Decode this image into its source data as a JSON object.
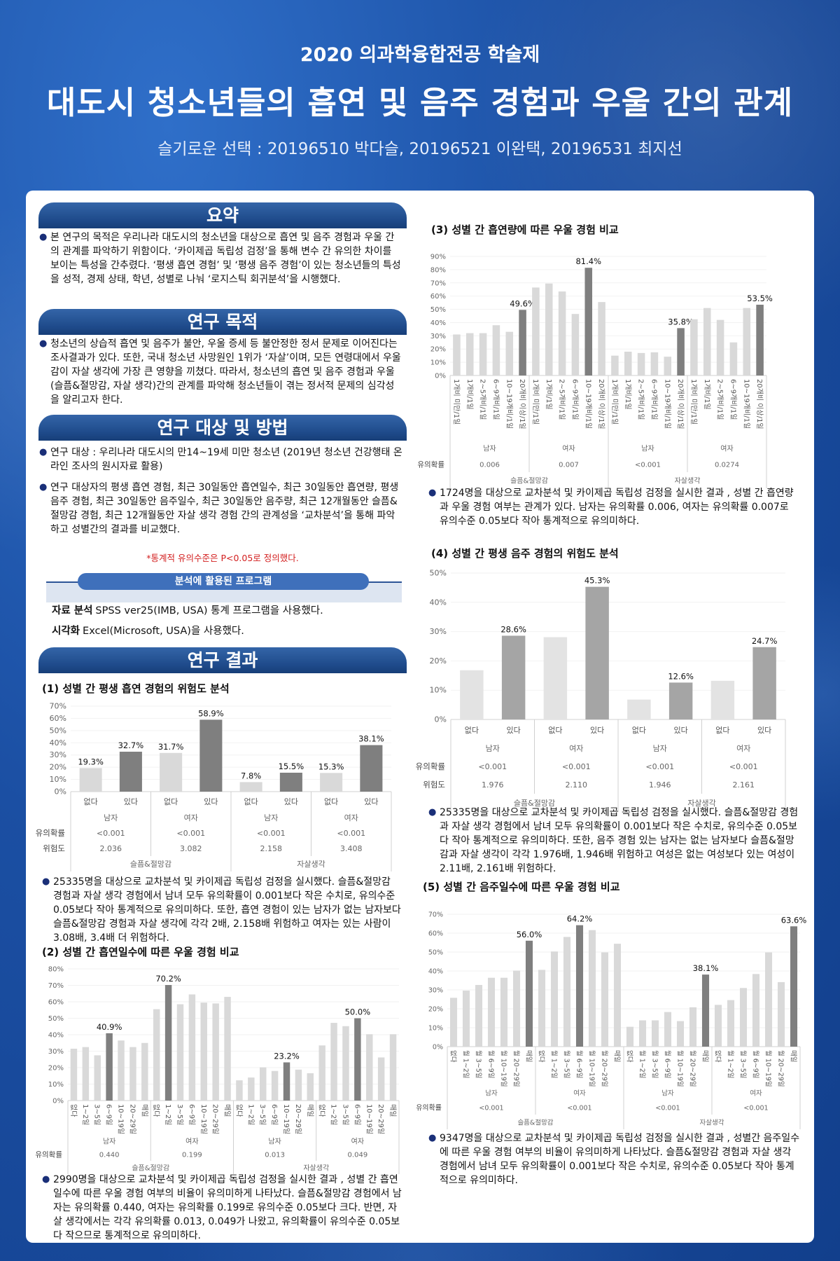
{
  "header": {
    "event": "2020 의과학융합전공 학술제",
    "title": "대도시 청소년들의 흡연 및 음주 경험과 우울 간의 관계",
    "authors": "슬기로운 선택 : 20196510 박다슬, 20196521 이완택, 20196531 최지선"
  },
  "sections": {
    "summary": {
      "title": "요약",
      "text": "본 연구의 목적은 우리나라 대도시의 청소년을 대상으로 흡연 및 음주 경험과 우울 간의 관계를 파악하기 위함이다. ‘카이제곱 독립성 검정’을 통해 변수 간 유의한 차이를 보이는 특성을 간추렸다. ‘평생 흡연 경험’ 및 ‘평생 음주 경험’이 있는 청소년들의 특성을 성적, 경제 상태, 학년, 성별로 나눠 ‘로지스틱 회귀분석’을 시행했다."
    },
    "purpose": {
      "title": "연구 목적",
      "text": "청소년의 상습적 흡연 및 음주가 불안, 우울 증세 등  불안정한 정서 문제로 이어진다는 조사결과가 있다. 또한, 국내 청소년 사망원인 1위가 ‘자살’이며, 모든 연령대에서 우울감이 자살 생각에 가장 큰 영향을 끼쳤다. 따라서, 청소년의 흡연 및 음주 경험과 우울(슬픔&절망감, 자살 생각)간의 관계를 파악해 청소년들이 겪는 정서적 문제의 심각성을 알리고자 한다."
    },
    "methods": {
      "title": "연구 대상 및 방법",
      "bullets": [
        "연구 대상 : 우리나라 대도시의 만14~19세 미만 청소년 (2019년 청소년 건강행태 온라인 조사의 원시자료 활용)",
        "연구 대상자의 평생 흡연 경험, 최근 30일동안 흡연일수, 최근 30일동안 흡연량, 평생 음주 경험, 최근 30일동안 음주일수, 최근 30일동안 음주량, 최근 12개월동안 슬픔&절망감 경험, 최근 12개월동안 자살 생각 경험 간의 관계성을 ‘교차분석’을 통해 파악하고 성별간의 결과를 비교했다."
      ],
      "note": "*통계적 유의수준은 P<0.05로 정의했다.",
      "program_title": "분석에 활용된 프로그램",
      "tools": [
        {
          "label": "자료 분석",
          "text": "SPSS ver25(IMB, USA) 통계 프로그램을 사용했다."
        },
        {
          "label": "시각화",
          "text": "Excel(Microsoft, USA)을 사용했다."
        }
      ]
    },
    "results": {
      "title": "연구 결과"
    }
  },
  "charts_text": [
    {
      "title": "(1) 성별 간 평생 흡연 경험의 위험도 분석",
      "desc": "25335명을 대상으로 교차분석 및 카이제곱 독립성 검정을 실시했다. 슬픔&절망감 경험과 자살 생각 경험에서 남녀 모두 유의확률이 0.001보다 작은 수치로, 유의수준 0.05보다 작아 통계적으로 유의미하다. 또한, 흡연 경험이 있는 남자가 없는 남자보다 슬픔&절망감 경험과 자살 생각에 각각 2배, 2.158배 위험하고 여자는 있는 사람이 3.08배, 3.4배 더 위험하다."
    },
    {
      "title": "(2) 성별 간 흡연일수에 따른 우울 경험 비교",
      "desc": "2990명을 대상으로 교차분석 및 카이제곱 독립성 검정을 실시한 결과 , 성별 간 흡연일수에 따른 우울 경험 여부의 비율이 유의미하게 나타났다. 슬픔&절망감 경험에서 남자는 유의확률 0.440, 여자는 유의확률 0.199로 유의수준 0.05보다 크다. 반면, 자살 생각에서는 각각 유의확률 0.013, 0.049가 나왔고, 유의확률이 유의수준 0.05보다 작으므로 통계적으로 유의미하다."
    },
    {
      "title": "(3) 성별 간 흡연량에 따른 우울 경험 비교",
      "desc": "1724명을 대상으로 교차분석 및 카이제곱 독립성 검정을 실시한 결과 , 성별 간 흡연량과 우울 경험 여부는 관계가 있다. 남자는 유의확률 0.006, 여자는 유의확률 0.007로 유의수준 0.05보다 작아 통계적으로 유의미하다."
    },
    {
      "title": "(4) 성별 간 평생 음주 경험의 위험도 분석",
      "desc": "25335명을 대상으로 교차분석 및 카이제곱 독립성 검정을 실시했다. 슬픔&절망감 경험과 자살 생각 경험에서 남녀 모두 유의확률이 0.001보다 작은 수치로, 유의수준 0.05보다 작아 통계적으로 유의미하다. 또한, 음주 경험 있는 남자는 없는 남자보다 슬픔&절망감과 자살 생각이 각각 1.976배, 1.946배 위험하고 여성은 없는 여성보다 있는 여성이 2.11배, 2.161배 위험하다."
    },
    {
      "title": "(5) 성별 간 음주일수에 따른 우울 경험 비교",
      "desc": "9347명을 대상으로 교차분석 및 카이제곱 독립성 검정을 실시한 결과 , 성별간 음주일수에 따른 우울 경험 여부의 비율이 유의미하게 나타났다. 슬픔&절망감 경험과 자살 생각 경험에서 남녀 모두 유의확률이 0.001보다 작은 수치로, 유의수준 0.05보다 작아 통계적으로 유의미하다."
    }
  ],
  "colors": {
    "highlight": "#7f7f7f",
    "normal": "#d9d9d9",
    "highlight_alt": "#a5a5a5",
    "normal_alt": "#e3e3e3",
    "banner": "#1e4a8a",
    "note": "#d32020"
  },
  "chart_data": [
    {
      "type": "bar",
      "ylim": [
        0,
        70
      ],
      "ytick_step": 10,
      "y_format": "percent",
      "row_labels": [
        "유의확률",
        "위험도"
      ],
      "categories": [
        "슬픔&절망감",
        "자살생각"
      ],
      "groups": [
        {
          "category": "슬픔&절망감",
          "sex": "남자",
          "significance": "<0.001",
          "risk": "2.036",
          "x": [
            "없다",
            "있다"
          ],
          "values": [
            19.3,
            32.7
          ],
          "highlight": 1,
          "labeled": [
            0,
            1
          ]
        },
        {
          "category": "슬픔&절망감",
          "sex": "여자",
          "significance": "<0.001",
          "risk": "3.082",
          "x": [
            "없다",
            "있다"
          ],
          "values": [
            31.7,
            58.9
          ],
          "highlight": 1,
          "labeled": [
            0,
            1
          ]
        },
        {
          "category": "자살생각",
          "sex": "남자",
          "significance": "<0.001",
          "risk": "2.158",
          "x": [
            "없다",
            "있다"
          ],
          "values": [
            7.8,
            15.5
          ],
          "highlight": 1,
          "labeled": [
            0,
            1
          ]
        },
        {
          "category": "자살생각",
          "sex": "여자",
          "significance": "<0.001",
          "risk": "3.408",
          "x": [
            "없다",
            "있다"
          ],
          "values": [
            15.3,
            38.1
          ],
          "highlight": 1,
          "labeled": [
            0,
            1
          ]
        }
      ]
    },
    {
      "type": "bar",
      "ylim": [
        0,
        80
      ],
      "ytick_step": 10,
      "y_format": "percent",
      "row_labels": [
        "유의확률"
      ],
      "categories": [
        "슬픔&절망감",
        "자살생각"
      ],
      "groups": [
        {
          "category": "슬픔&절망감",
          "sex": "남자",
          "significance": "0.440",
          "x": [
            "없다",
            "1~2일",
            "3~5일",
            "6~9일",
            "10~19일",
            "20~29일",
            "매일"
          ],
          "values": [
            31.5,
            32.5,
            27.5,
            40.9,
            36.5,
            32.5,
            35.0
          ],
          "highlight": 3,
          "labeled": [
            3
          ]
        },
        {
          "category": "슬픔&절망감",
          "sex": "여자",
          "significance": "0.199",
          "x": [
            "없다",
            "1~2일",
            "3~5일",
            "6~9일",
            "10~19일",
            "20~29일",
            "매일"
          ],
          "values": [
            55.5,
            70.2,
            58.5,
            64.5,
            59.5,
            59.0,
            63.0
          ],
          "highlight": 1,
          "labeled": [
            1
          ]
        },
        {
          "category": "자살생각",
          "sex": "남자",
          "significance": "0.013",
          "x": [
            "없다",
            "1~2일",
            "3~5일",
            "6~9일",
            "10~19일",
            "20~29일",
            "매일"
          ],
          "values": [
            12.3,
            14.0,
            20.2,
            18.0,
            23.2,
            18.8,
            16.6
          ],
          "highlight": 4,
          "labeled": [
            4
          ]
        },
        {
          "category": "자살생각",
          "sex": "여자",
          "significance": "0.049",
          "x": [
            "없다",
            "1~2일",
            "3~5일",
            "6~9일",
            "10~19일",
            "20~29일",
            "매일"
          ],
          "values": [
            33.5,
            47.2,
            45.2,
            50.0,
            40.3,
            26.2,
            40.3
          ],
          "highlight": 3,
          "labeled": [
            3
          ]
        }
      ]
    },
    {
      "type": "bar",
      "ylim": [
        0,
        90
      ],
      "ytick_step": 10,
      "y_format": "percent",
      "row_labels": [
        "유의확률"
      ],
      "categories": [
        "슬픔&절망감",
        "자살생각"
      ],
      "groups": [
        {
          "category": "슬픔&절망감",
          "sex": "남자",
          "significance": "0.006",
          "x": [
            "1개비 미만/1일",
            "1개비/1일",
            "2~5개비/1일",
            "6~9개비/1일",
            "10~19개비/1일",
            "20개비 이상/1일"
          ],
          "values": [
            31.0,
            32.0,
            32.0,
            38.0,
            33.0,
            49.6
          ],
          "highlight": 5,
          "labeled": [
            5
          ]
        },
        {
          "category": "슬픔&절망감",
          "sex": "여자",
          "significance": "0.007",
          "x": [
            "1개비 미만/1일",
            "1개비/1일",
            "2~5개비/1일",
            "6~9개비/1일",
            "10~19개비/1일",
            "20개비 이상/1일"
          ],
          "values": [
            66.5,
            69.5,
            63.5,
            46.5,
            81.4,
            55.5
          ],
          "highlight": 4,
          "labeled": [
            4
          ]
        },
        {
          "category": "자살생각",
          "sex": "남자",
          "significance": "<0.001",
          "x": [
            "1개비 미만/1일",
            "1개비/1일",
            "2~5개비/1일",
            "6~9개비/1일",
            "10~19개비/1일",
            "20개비 이상/1일"
          ],
          "values": [
            15.0,
            18.0,
            17.0,
            17.5,
            14.2,
            35.8
          ],
          "highlight": 5,
          "labeled": [
            5
          ]
        },
        {
          "category": "자살생각",
          "sex": "여자",
          "significance": "0.0274",
          "x": [
            "1개비 미만/1일",
            "1개비/1일",
            "2~5개비/1일",
            "6~9개비/1일",
            "10~19개비/1일",
            "20개비 이상/1일"
          ],
          "values": [
            42.5,
            51.0,
            42.0,
            25.0,
            51.0,
            53.5
          ],
          "highlight": 5,
          "labeled": [
            5
          ]
        }
      ]
    },
    {
      "type": "bar",
      "ylim": [
        0,
        50
      ],
      "ytick_step": 10,
      "y_format": "percent",
      "alt_colors": true,
      "row_labels": [
        "유의확률",
        "위험도"
      ],
      "categories": [
        "슬픔&절망감",
        "자살생각"
      ],
      "groups": [
        {
          "category": "슬픔&절망감",
          "sex": "남자",
          "significance": "<0.001",
          "risk": "1.976",
          "x": [
            "없다",
            "있다"
          ],
          "values": [
            16.8,
            28.6
          ],
          "highlight": 1,
          "labeled": [
            1
          ]
        },
        {
          "category": "슬픔&절망감",
          "sex": "여자",
          "significance": "<0.001",
          "risk": "2.110",
          "x": [
            "없다",
            "있다"
          ],
          "values": [
            28.1,
            45.3
          ],
          "highlight": 1,
          "labeled": [
            1
          ]
        },
        {
          "category": "자살생각",
          "sex": "남자",
          "significance": "<0.001",
          "risk": "1.946",
          "x": [
            "없다",
            "있다"
          ],
          "values": [
            6.8,
            12.6
          ],
          "highlight": 1,
          "labeled": [
            1
          ]
        },
        {
          "category": "자살생각",
          "sex": "여자",
          "significance": "<0.001",
          "risk": "2.161",
          "x": [
            "없다",
            "있다"
          ],
          "values": [
            13.2,
            24.7
          ],
          "highlight": 1,
          "labeled": [
            1
          ]
        }
      ]
    },
    {
      "type": "bar",
      "ylim": [
        0,
        70
      ],
      "ytick_step": 10,
      "y_format": "percent",
      "row_labels": [
        "유의확률"
      ],
      "categories": [
        "슬픔&절망감",
        "자살생각"
      ],
      "groups": [
        {
          "category": "슬픔&절망감",
          "sex": "남자",
          "significance": "<0.001",
          "x": [
            "없다",
            "월 1~2일",
            "월 3~5일",
            "월 6~9일",
            "월 10~19일",
            "월 20~29일",
            "매일"
          ],
          "values": [
            25.8,
            29.6,
            32.6,
            36.4,
            36.4,
            40.2,
            56.0
          ],
          "highlight": 6,
          "labeled": [
            6
          ]
        },
        {
          "category": "슬픔&절망감",
          "sex": "여자",
          "significance": "<0.001",
          "x": [
            "없다",
            "월 1~2일",
            "월 3~5일",
            "월 6~9일",
            "월 10~19일",
            "월 20~29일",
            "매일"
          ],
          "values": [
            40.6,
            50.3,
            58.0,
            64.2,
            61.6,
            49.8,
            54.4
          ],
          "highlight": 3,
          "labeled": [
            3
          ]
        },
        {
          "category": "자살생각",
          "sex": "남자",
          "significance": "<0.001",
          "x": [
            "없다",
            "월 1~2일",
            "월 3~5일",
            "월 6~9일",
            "월 10~19일",
            "월 20~29일",
            "매일"
          ],
          "values": [
            10.5,
            13.9,
            13.9,
            18.3,
            13.5,
            20.8,
            38.1
          ],
          "highlight": 6,
          "labeled": [
            6
          ]
        },
        {
          "category": "자살생각",
          "sex": "여자",
          "significance": "<0.001",
          "x": [
            "없다",
            "월 1~2일",
            "월 3~5일",
            "월 6~9일",
            "월 10~19일",
            "월 20~29일",
            "매일"
          ],
          "values": [
            22.1,
            24.6,
            31.0,
            38.4,
            49.8,
            34.1,
            63.6
          ],
          "highlight": 6,
          "labeled": [
            6
          ]
        }
      ]
    }
  ]
}
